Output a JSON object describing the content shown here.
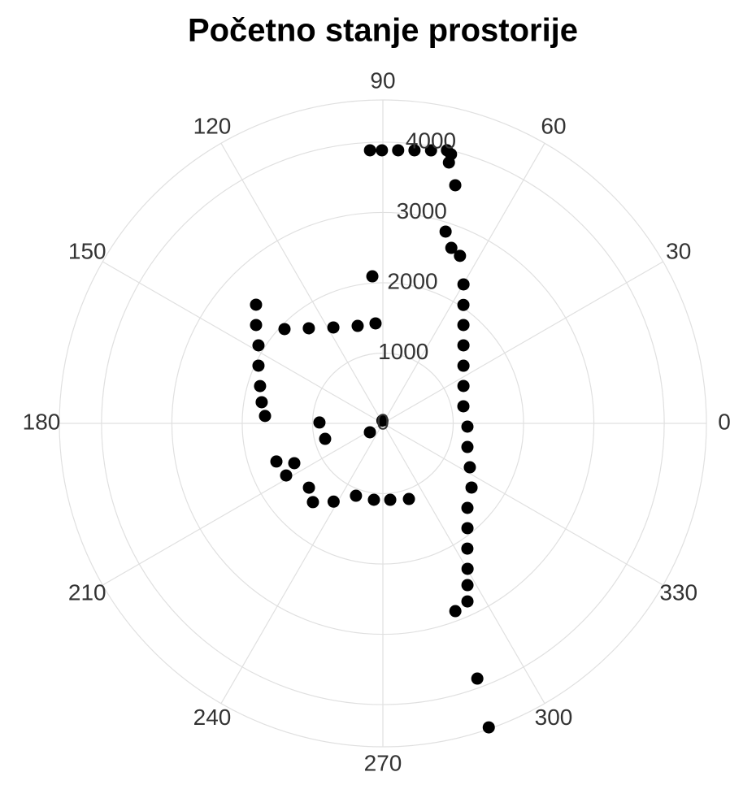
{
  "chart_data": {
    "type": "scatter",
    "polar": true,
    "title": "Početno stanje prostorije",
    "color": "#000000",
    "grid": true,
    "rlim": [
      0,
      4600
    ],
    "rticks": [
      0,
      1000,
      2000,
      3000,
      4000
    ],
    "thetaticks": [
      0,
      30,
      60,
      90,
      120,
      150,
      180,
      210,
      240,
      270,
      300,
      330
    ],
    "theta": [
      92.7,
      90.2,
      86.8,
      83.4,
      80.0,
      76.8,
      75.8,
      75.8,
      73.1,
      71.9,
      68.7,
      65.3,
      59.9,
      55.8,
      50.7,
      44.1,
      35.6,
      24.9,
      12.0,
      357.8,
      344.4,
      333.2,
      324.1,
      315.0,
      308.9,
      304.0,
      300.2,
      297.6,
      295.4,
      291.1,
      290.3,
      289.2,
      94.1,
      136.2,
      127.9,
      117.3,
      104.5,
      94.2,
      136.9,
      142.2,
      147.9,
      155.1,
      163.1,
      170.1,
      176.4,
      179.2,
      195.0,
      214.5,
      100.0,
      199.7,
      208.3,
      204.2,
      221.0,
      228.4,
      237.8,
      249.6,
      263.3,
      275.5,
      289.0
    ],
    "r": [
      3888,
      3884,
      3890,
      3910,
      3943,
      3990,
      3948,
      3827,
      3540,
      2870,
      2679,
      2623,
      2285,
      2037,
      1808,
      1595,
      1409,
      1263,
      1170,
      1203,
      1248,
      1385,
      1556,
      1700,
      1915,
      2148,
      2393,
      2596,
      2803,
      2862,
      3870,
      4578,
      2097,
      1938,
      1714,
      1535,
      1432,
      1426,
      2470,
      2282,
      2088,
      1950,
      1825,
      1749,
      1679,
      902,
      850,
      224,
      40,
      1608,
      1562,
      1381,
      1393,
      1498,
      1315,
      1098,
      1094,
      1092,
      1137
    ]
  }
}
